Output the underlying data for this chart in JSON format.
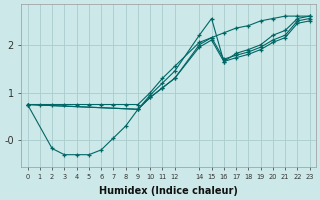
{
  "xlabel": "Humidex (Indice chaleur)",
  "ylabel": "",
  "background_color": "#cce8e8",
  "grid_color": "#aacccc",
  "line_color": "#006666",
  "xlim": [
    -0.5,
    23.5
  ],
  "ylim": [
    -0.55,
    2.85
  ],
  "yticks": [
    0,
    1,
    2
  ],
  "ytick_labels": [
    "-0",
    "1",
    "2"
  ],
  "xticks": [
    0,
    1,
    2,
    3,
    4,
    5,
    6,
    7,
    8,
    9,
    10,
    11,
    12,
    14,
    15,
    16,
    17,
    18,
    19,
    20,
    21,
    22,
    23
  ],
  "xtick_labels": [
    "0",
    "1",
    "2",
    "3",
    "4",
    "5",
    "6",
    "7",
    "8",
    "9",
    "10",
    "11",
    "12",
    "14",
    "15",
    "16",
    "17",
    "18",
    "19",
    "20",
    "21",
    "22",
    "23"
  ],
  "series": [
    {
      "x": [
        0,
        1,
        2,
        3,
        4,
        5,
        6,
        7,
        8,
        9,
        10,
        11,
        12,
        14,
        15,
        16,
        17,
        18,
        19,
        20,
        21,
        22,
        23
      ],
      "y": [
        0.75,
        0.75,
        0.75,
        0.75,
        0.75,
        0.75,
        0.75,
        0.75,
        0.75,
        0.75,
        1.0,
        1.3,
        1.55,
        2.05,
        2.15,
        2.25,
        2.35,
        2.4,
        2.5,
        2.55,
        2.6,
        2.6,
        2.6
      ]
    },
    {
      "x": [
        0,
        2,
        3,
        4,
        5,
        6,
        7,
        8,
        9,
        10,
        11,
        12,
        14,
        15,
        16,
        17,
        18,
        19,
        20,
        21,
        22,
        23
      ],
      "y": [
        0.75,
        -0.17,
        -0.3,
        -0.3,
        -0.3,
        -0.2,
        0.05,
        0.3,
        0.65,
        0.95,
        1.2,
        1.45,
        2.2,
        2.55,
        1.65,
        1.82,
        1.9,
        2.0,
        2.2,
        2.3,
        2.55,
        2.6
      ]
    },
    {
      "x": [
        0,
        9,
        10,
        11,
        12,
        14,
        15,
        16,
        17,
        18,
        19,
        20,
        21,
        22,
        23
      ],
      "y": [
        0.75,
        0.65,
        0.9,
        1.1,
        1.3,
        2.0,
        2.15,
        1.7,
        1.78,
        1.85,
        1.95,
        2.1,
        2.2,
        2.5,
        2.55
      ]
    },
    {
      "x": [
        0,
        9,
        10,
        11,
        12,
        14,
        15,
        16,
        17,
        18,
        19,
        20,
        21,
        22,
        23
      ],
      "y": [
        0.75,
        0.65,
        0.9,
        1.1,
        1.3,
        1.95,
        2.1,
        1.65,
        1.73,
        1.8,
        1.9,
        2.05,
        2.15,
        2.45,
        2.5
      ]
    }
  ]
}
